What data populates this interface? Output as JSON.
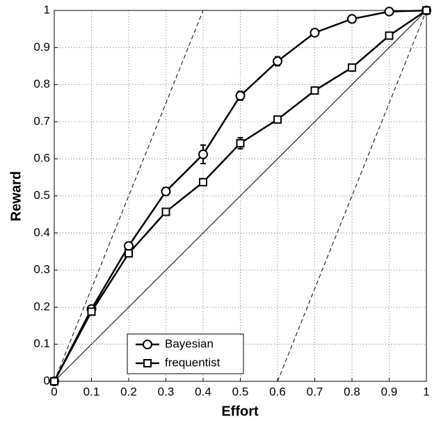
{
  "chart_data": {
    "type": "line",
    "xlabel": "Effort",
    "ylabel": "Reward",
    "x": [
      0,
      0.1,
      0.2,
      0.3,
      0.4,
      0.5,
      0.6,
      0.7,
      0.8,
      0.9,
      1
    ],
    "series": [
      {
        "name": "Bayesian",
        "color": "#000000",
        "marker": "circle",
        "values": [
          0,
          0.195,
          0.365,
          0.512,
          0.612,
          0.77,
          0.863,
          0.94,
          0.977,
          0.997,
          1
        ],
        "errors": [
          0,
          0.006,
          0.006,
          0.01,
          0.025,
          0.012,
          0.012,
          0.008,
          0.005,
          0.004,
          0
        ]
      },
      {
        "name": "frequentist",
        "color": "#000000",
        "marker": "square",
        "values": [
          0,
          0.188,
          0.345,
          0.457,
          0.537,
          0.642,
          0.706,
          0.784,
          0.846,
          0.932,
          1
        ],
        "errors": [
          0,
          0.005,
          0.005,
          0.006,
          0.006,
          0.015,
          0.006,
          0.005,
          0.005,
          0.006,
          0
        ]
      }
    ],
    "reference_lines": [
      {
        "x": [
          0,
          1
        ],
        "values": [
          0,
          1
        ],
        "style": "solid"
      },
      {
        "x": [
          0,
          0.4
        ],
        "values": [
          0,
          1
        ],
        "style": "dashed"
      },
      {
        "x": [
          0.6,
          1
        ],
        "values": [
          0,
          1
        ],
        "style": "dashed"
      }
    ],
    "xlim": [
      0,
      1
    ],
    "ylim": [
      0,
      1
    ],
    "xticks": [
      0,
      0.1,
      0.2,
      0.3,
      0.4,
      0.5,
      0.6,
      0.7,
      0.8,
      0.9,
      1
    ],
    "yticks": [
      0,
      0.1,
      0.2,
      0.3,
      0.4,
      0.5,
      0.6,
      0.7,
      0.8,
      0.9,
      1
    ],
    "grid": true,
    "legend": "lower center"
  }
}
